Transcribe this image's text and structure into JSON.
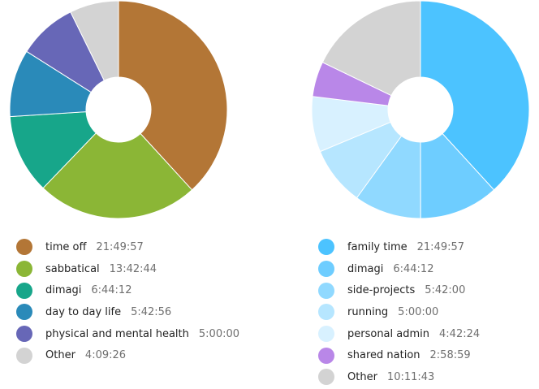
{
  "chart_data": [
    {
      "type": "pie",
      "style": "donut",
      "title": "",
      "legend_position": "bottom",
      "series": [
        {
          "label": "time off",
          "duration": "21:49:57",
          "value": 78597,
          "color": "#b37636"
        },
        {
          "label": "sabbatical",
          "duration": "13:42:44",
          "value": 49364,
          "color": "#8bb636"
        },
        {
          "label": "dimagi",
          "duration": "6:44:12",
          "value": 24252,
          "color": "#17a68a"
        },
        {
          "label": "day to day life",
          "duration": "5:42:56",
          "value": 20576,
          "color": "#2a8ab9"
        },
        {
          "label": "physical and mental health",
          "duration": "5:00:00",
          "value": 18000,
          "color": "#6767b7"
        },
        {
          "label": "Other",
          "duration": "4:09:26",
          "value": 14966,
          "color": "#d3d3d3"
        }
      ]
    },
    {
      "type": "pie",
      "style": "donut",
      "title": "",
      "legend_position": "bottom",
      "series": [
        {
          "label": "family time",
          "duration": "21:49:57",
          "value": 78597,
          "color": "#4cc3ff"
        },
        {
          "label": "dimagi",
          "duration": "6:44:12",
          "value": 24252,
          "color": "#6ecdff"
        },
        {
          "label": "side-projects",
          "duration": "5:42:00",
          "value": 20520,
          "color": "#90d9ff"
        },
        {
          "label": "running",
          "duration": "5:00:00",
          "value": 18000,
          "color": "#b6e6ff"
        },
        {
          "label": "personal admin",
          "duration": "4:42:24",
          "value": 16944,
          "color": "#d8f1ff"
        },
        {
          "label": "shared nation",
          "duration": "2:58:59",
          "value": 10739,
          "color": "#b987e8"
        },
        {
          "label": "Other",
          "duration": "10:11:43",
          "value": 36703,
          "color": "#d3d3d3"
        }
      ]
    }
  ]
}
